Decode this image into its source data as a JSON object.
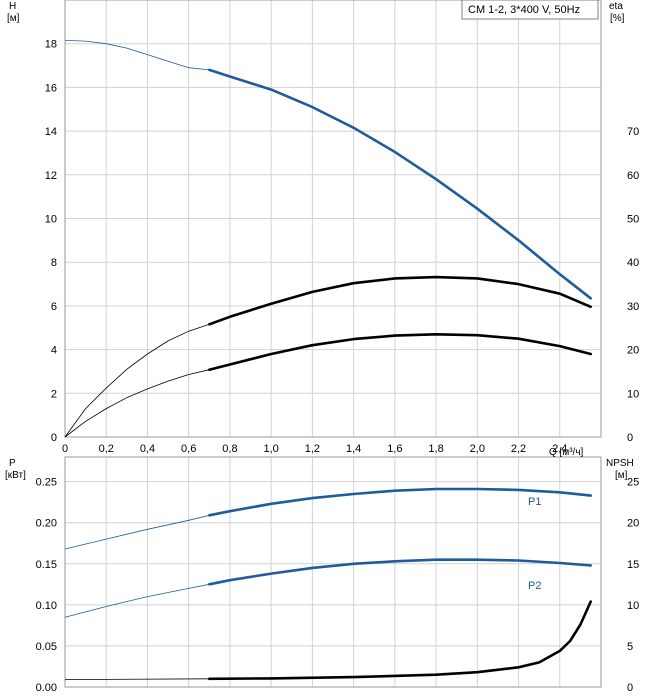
{
  "legend_badge": "CM 1-2, 3*400 V, 50Hz",
  "colors": {
    "blue": "#1f5c99",
    "black": "#000000",
    "grid": "#d2d2d2",
    "frame": "#9a9a9a"
  },
  "chart_data": [
    {
      "type": "line",
      "title": "CM 1-2, 3*400 V, 50Hz",
      "xlabel": "Q [м³/ч]",
      "x_ticks": [
        "0",
        "0,2",
        "0,4",
        "0,6",
        "0,8",
        "1,0",
        "1,2",
        "1,4",
        "1,6",
        "1,8",
        "2,0",
        "2,2",
        "2,4"
      ],
      "xlim": [
        0,
        2.6
      ],
      "left_axis": {
        "label_line1": "H",
        "label_line2": "[м]",
        "ylim": [
          0,
          20
        ],
        "ticks": [
          "0",
          "2",
          "4",
          "6",
          "8",
          "10",
          "12",
          "14",
          "16",
          "18"
        ]
      },
      "right_axis": {
        "label_line1": "eta",
        "label_line2": "[%]",
        "ylim": [
          0,
          100
        ],
        "ticks": [
          "0",
          "10",
          "20",
          "30",
          "40",
          "50",
          "60",
          "70"
        ]
      },
      "series": [
        {
          "name": "H",
          "axis": "left",
          "color": "#1f5c99",
          "duty_from": 0.7,
          "x": [
            0,
            0.1,
            0.2,
            0.3,
            0.4,
            0.5,
            0.6,
            0.7,
            0.8,
            1.0,
            1.2,
            1.4,
            1.6,
            1.8,
            2.0,
            2.2,
            2.4,
            2.55
          ],
          "y": [
            18.15,
            18.12,
            18.0,
            17.8,
            17.5,
            17.2,
            16.9,
            16.8,
            16.5,
            15.9,
            15.1,
            14.15,
            13.05,
            11.8,
            10.45,
            9.0,
            7.45,
            6.35
          ]
        },
        {
          "name": "eta",
          "axis": "right",
          "color": "#000000",
          "duty_from": 0.7,
          "x": [
            0,
            0.1,
            0.2,
            0.3,
            0.4,
            0.5,
            0.6,
            0.7,
            0.8,
            1.0,
            1.2,
            1.4,
            1.6,
            1.8,
            2.0,
            2.2,
            2.4,
            2.55
          ],
          "y": [
            0,
            6.5,
            11.2,
            15.5,
            19.0,
            22.0,
            24.2,
            25.8,
            27.5,
            30.5,
            33.2,
            35.2,
            36.3,
            36.6,
            36.3,
            35.0,
            32.8,
            29.8
          ]
        },
        {
          "name": "eta_pump",
          "axis": "right",
          "color": "#000000",
          "duty_from": 0.7,
          "x": [
            0,
            0.1,
            0.2,
            0.3,
            0.4,
            0.5,
            0.6,
            0.7,
            0.8,
            1.0,
            1.2,
            1.4,
            1.6,
            1.8,
            2.0,
            2.2,
            2.4,
            2.55
          ],
          "y": [
            0,
            3.6,
            6.5,
            9.0,
            11.0,
            12.8,
            14.3,
            15.4,
            16.6,
            19.0,
            21.0,
            22.4,
            23.2,
            23.5,
            23.3,
            22.5,
            20.8,
            19.0
          ]
        }
      ]
    },
    {
      "type": "line",
      "xlim": [
        0,
        2.6
      ],
      "left_axis": {
        "label_line1": "P",
        "label_line2": "[кВт]",
        "ylim": [
          0,
          0.28
        ],
        "ticks": [
          "0.00",
          "0.05",
          "0.10",
          "0.15",
          "0.20",
          "0.25"
        ]
      },
      "right_axis": {
        "label_line1": "NPSH",
        "label_line2": "[м]",
        "ylim": [
          0,
          28
        ],
        "ticks": [
          "0",
          "5",
          "10",
          "15",
          "20",
          "25"
        ]
      },
      "series": [
        {
          "name": "P1",
          "axis": "left",
          "color": "#1f5c99",
          "duty_from": 0.7,
          "x": [
            0,
            0.2,
            0.4,
            0.6,
            0.7,
            0.8,
            1.0,
            1.2,
            1.4,
            1.6,
            1.8,
            2.0,
            2.2,
            2.4,
            2.55
          ],
          "y": [
            0.168,
            0.18,
            0.192,
            0.203,
            0.209,
            0.214,
            0.223,
            0.23,
            0.235,
            0.239,
            0.241,
            0.241,
            0.24,
            0.237,
            0.233
          ]
        },
        {
          "name": "P2",
          "axis": "left",
          "color": "#1f5c99",
          "duty_from": 0.7,
          "x": [
            0,
            0.2,
            0.4,
            0.6,
            0.7,
            0.8,
            1.0,
            1.2,
            1.4,
            1.6,
            1.8,
            2.0,
            2.2,
            2.4,
            2.55
          ],
          "y": [
            0.085,
            0.098,
            0.11,
            0.12,
            0.125,
            0.13,
            0.138,
            0.145,
            0.15,
            0.153,
            0.155,
            0.155,
            0.154,
            0.151,
            0.148
          ]
        },
        {
          "name": "NPSH",
          "axis": "right",
          "color": "#000000",
          "duty_from": 0.7,
          "x": [
            0,
            0.7,
            1.0,
            1.4,
            1.8,
            2.0,
            2.2,
            2.3,
            2.4,
            2.45,
            2.5,
            2.55
          ],
          "y": [
            0.9,
            1.0,
            1.05,
            1.2,
            1.5,
            1.8,
            2.4,
            3.0,
            4.4,
            5.6,
            7.6,
            10.4
          ]
        }
      ],
      "series_labels": [
        "P1",
        "P2"
      ]
    }
  ]
}
